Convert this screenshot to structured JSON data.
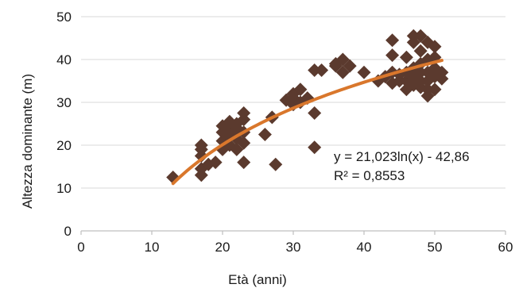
{
  "chart_data": {
    "type": "scatter",
    "title": "",
    "xlabel": "Età (anni)",
    "ylabel": "Altezza dominante (m)",
    "xlim": [
      0,
      60
    ],
    "ylim": [
      0,
      50
    ],
    "xticks": [
      "0",
      "10",
      "20",
      "30",
      "40",
      "50",
      "60"
    ],
    "yticks": [
      "0",
      "10",
      "20",
      "30",
      "40",
      "50"
    ],
    "grid": "horizontal",
    "marker": "diamond",
    "marker_color": "#5b3a2e",
    "trend_color": "#d9772c",
    "trendline": {
      "type": "logarithmic",
      "a": 21.023,
      "b": -42.86,
      "x_range": [
        13,
        51
      ],
      "equation": "y = 21,023ln(x) - 42,86",
      "r2": "R² = 0,8553"
    },
    "series": [
      {
        "points": [
          [
            13,
            12.5
          ],
          [
            17,
            13
          ],
          [
            17,
            14.5
          ],
          [
            17,
            17.5
          ],
          [
            17,
            19
          ],
          [
            17,
            20
          ],
          [
            18,
            15.5
          ],
          [
            19,
            16
          ],
          [
            20,
            19
          ],
          [
            20,
            21
          ],
          [
            20,
            23
          ],
          [
            20,
            24.5
          ],
          [
            21,
            20
          ],
          [
            21,
            22
          ],
          [
            21,
            24
          ],
          [
            21,
            25.5
          ],
          [
            22,
            19
          ],
          [
            22,
            21.5
          ],
          [
            22,
            23
          ],
          [
            22,
            24
          ],
          [
            22,
            25
          ],
          [
            23,
            16
          ],
          [
            23,
            20.5
          ],
          [
            23,
            23
          ],
          [
            23,
            26
          ],
          [
            23,
            27.5
          ],
          [
            26,
            22.5
          ],
          [
            27,
            26.5
          ],
          [
            27.5,
            15.5
          ],
          [
            29,
            30.5
          ],
          [
            30,
            29.5
          ],
          [
            30,
            31
          ],
          [
            30,
            32
          ],
          [
            31,
            30
          ],
          [
            31,
            33
          ],
          [
            32,
            31
          ],
          [
            33,
            19.5
          ],
          [
            33,
            27.5
          ],
          [
            33,
            37.5
          ],
          [
            34,
            37.5
          ],
          [
            36,
            38.5
          ],
          [
            36,
            39
          ],
          [
            37,
            37
          ],
          [
            37,
            40
          ],
          [
            38,
            38.5
          ],
          [
            40,
            37
          ],
          [
            42,
            35
          ],
          [
            43,
            36
          ],
          [
            44,
            34.5
          ],
          [
            44,
            37
          ],
          [
            44,
            41
          ],
          [
            44,
            44.5
          ],
          [
            45,
            35
          ],
          [
            45,
            36.5
          ],
          [
            46,
            33
          ],
          [
            46,
            35
          ],
          [
            46,
            37
          ],
          [
            46,
            40.5
          ],
          [
            47,
            34
          ],
          [
            47,
            36
          ],
          [
            47,
            38
          ],
          [
            47,
            44
          ],
          [
            47,
            45.5
          ],
          [
            48,
            33.5
          ],
          [
            48,
            35
          ],
          [
            48,
            37
          ],
          [
            48,
            39
          ],
          [
            48,
            42
          ],
          [
            48,
            45.5
          ],
          [
            49,
            31.5
          ],
          [
            49,
            33
          ],
          [
            49,
            35
          ],
          [
            49,
            37
          ],
          [
            49,
            40
          ],
          [
            49,
            44
          ],
          [
            50,
            33
          ],
          [
            50,
            36
          ],
          [
            50,
            38
          ],
          [
            50,
            40.5
          ],
          [
            50,
            43
          ],
          [
            51,
            35.5
          ],
          [
            51,
            37
          ]
        ]
      }
    ]
  }
}
